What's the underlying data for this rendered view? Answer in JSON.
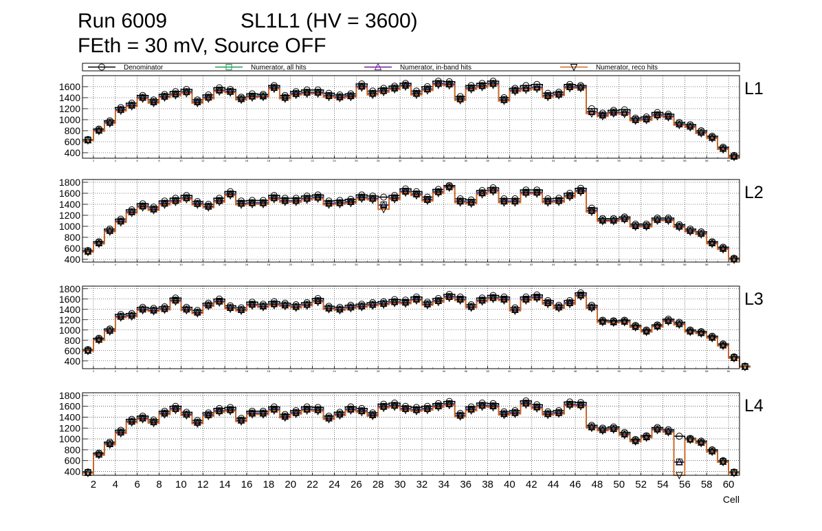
{
  "title": {
    "run": "Run 6009",
    "chamber": "SL1L1 (HV = 3600)",
    "subtitle": "FEth = 30 mV, Source OFF"
  },
  "colors": {
    "denominator": "#000000",
    "all_hits": "#1f9e58",
    "in_band": "#6a1b9a",
    "reco": "#d2691e"
  },
  "chart_data": {
    "type": "line",
    "xlabel": "Cell",
    "x_range": [
      1,
      61
    ],
    "x_tick_labels": [
      "2",
      "4",
      "6",
      "8",
      "10",
      "12",
      "14",
      "16",
      "18",
      "20",
      "22",
      "24",
      "26",
      "28",
      "30",
      "32",
      "34",
      "36",
      "38",
      "40",
      "42",
      "44",
      "46",
      "48",
      "50",
      "52",
      "54",
      "56",
      "58",
      "60"
    ],
    "legend": {
      "placement": "top",
      "entries": [
        "Denominator",
        "Numerator, all hits",
        "Numerator, in-band hits",
        "Numerator, reco hits"
      ]
    },
    "grid": true,
    "panels": [
      {
        "label": "L1",
        "ylim": [
          300,
          1800
        ],
        "y_ticks": [
          "400",
          "600",
          "800",
          "1000",
          "1200",
          "1400",
          "1600"
        ],
        "denominator": [
          640,
          830,
          980,
          1220,
          1300,
          1440,
          1360,
          1460,
          1510,
          1550,
          1360,
          1450,
          1580,
          1550,
          1410,
          1470,
          1460,
          1620,
          1440,
          1510,
          1540,
          1540,
          1480,
          1450,
          1470,
          1650,
          1520,
          1570,
          1610,
          1660,
          1520,
          1600,
          1700,
          1690,
          1420,
          1620,
          1660,
          1700,
          1400,
          1570,
          1620,
          1640,
          1480,
          1500,
          1640,
          1620,
          1200,
          1120,
          1170,
          1180,
          1030,
          1050,
          1130,
          1100,
          950,
          910,
          800,
          700,
          500,
          350
        ],
        "reco": [
          620,
          790,
          930,
          1160,
          1240,
          1380,
          1300,
          1400,
          1440,
          1480,
          1300,
          1380,
          1510,
          1490,
          1360,
          1400,
          1410,
          1560,
          1380,
          1450,
          1470,
          1470,
          1410,
          1390,
          1410,
          1580,
          1450,
          1500,
          1550,
          1600,
          1450,
          1530,
          1630,
          1620,
          1350,
          1550,
          1590,
          1630,
          1340,
          1510,
          1540,
          1560,
          1410,
          1440,
          1570,
          1570,
          1110,
          1060,
          1110,
          1100,
          980,
          990,
          1060,
          1040,
          900,
          860,
          750,
          660,
          460,
          320
        ]
      },
      {
        "label": "L2",
        "ylim": [
          350,
          1850
        ],
        "y_ticks": [
          "400",
          "600",
          "800",
          "1000",
          "1200",
          "1400",
          "1600",
          "1800"
        ],
        "denominator": [
          560,
          720,
          950,
          1130,
          1300,
          1410,
          1350,
          1460,
          1510,
          1560,
          1450,
          1400,
          1510,
          1630,
          1460,
          1470,
          1470,
          1560,
          1510,
          1510,
          1550,
          1570,
          1460,
          1470,
          1490,
          1570,
          1550,
          1530,
          1560,
          1680,
          1630,
          1530,
          1670,
          1740,
          1500,
          1480,
          1650,
          1700,
          1500,
          1500,
          1660,
          1660,
          1500,
          1510,
          1600,
          1690,
          1330,
          1140,
          1140,
          1170,
          1040,
          1040,
          1150,
          1150,
          1030,
          950,
          900,
          720,
          620,
          420
        ],
        "reco": [
          530,
          680,
          900,
          1070,
          1240,
          1340,
          1290,
          1390,
          1440,
          1490,
          1390,
          1340,
          1440,
          1560,
          1390,
          1400,
          1400,
          1490,
          1440,
          1440,
          1480,
          1500,
          1390,
          1400,
          1420,
          1500,
          1480,
          1310,
          1490,
          1610,
          1560,
          1460,
          1600,
          1700,
          1430,
          1410,
          1580,
          1630,
          1430,
          1430,
          1590,
          1590,
          1430,
          1440,
          1530,
          1620,
          1260,
          1090,
          1090,
          1120,
          990,
          990,
          1100,
          1100,
          980,
          900,
          850,
          680,
          580,
          390
        ]
      },
      {
        "label": "L3",
        "ylim": [
          250,
          1850
        ],
        "y_ticks": [
          "400",
          "600",
          "800",
          "1000",
          "1200",
          "1400",
          "1600",
          "1800"
        ],
        "denominator": [
          620,
          840,
          1020,
          1300,
          1320,
          1440,
          1420,
          1450,
          1620,
          1440,
          1380,
          1520,
          1600,
          1470,
          1430,
          1540,
          1500,
          1550,
          1520,
          1490,
          1530,
          1610,
          1460,
          1440,
          1480,
          1500,
          1530,
          1550,
          1590,
          1580,
          1640,
          1540,
          1610,
          1690,
          1640,
          1490,
          1620,
          1670,
          1640,
          1430,
          1640,
          1680,
          1570,
          1480,
          1570,
          1720,
          1480,
          1190,
          1180,
          1190,
          1090,
          1000,
          1100,
          1210,
          1150,
          1000,
          970,
          880,
          730,
          480,
          300
        ],
        "reco": [
          590,
          800,
          970,
          1240,
          1260,
          1380,
          1360,
          1390,
          1550,
          1380,
          1320,
          1460,
          1530,
          1410,
          1370,
          1470,
          1440,
          1480,
          1460,
          1430,
          1470,
          1540,
          1400,
          1380,
          1420,
          1440,
          1470,
          1490,
          1520,
          1510,
          1570,
          1480,
          1540,
          1620,
          1570,
          1430,
          1550,
          1600,
          1570,
          1370,
          1570,
          1610,
          1500,
          1420,
          1500,
          1650,
          1420,
          1150,
          1140,
          1150,
          1050,
          960,
          1060,
          1160,
          1100,
          960,
          930,
          840,
          690,
          450,
          280
        ]
      },
      {
        "label": "L4",
        "ylim": [
          330,
          1850
        ],
        "y_ticks": [
          "400",
          "600",
          "800",
          "1000",
          "1200",
          "1400",
          "1600",
          "1800"
        ],
        "denominator": [
          390,
          740,
          940,
          1160,
          1360,
          1420,
          1350,
          1510,
          1600,
          1490,
          1340,
          1480,
          1560,
          1580,
          1380,
          1510,
          1510,
          1590,
          1450,
          1520,
          1590,
          1580,
          1420,
          1490,
          1590,
          1560,
          1480,
          1640,
          1660,
          1600,
          1580,
          1600,
          1650,
          1690,
          1470,
          1590,
          1660,
          1650,
          1500,
          1520,
          1700,
          1630,
          1500,
          1520,
          1680,
          1670,
          1250,
          1200,
          1220,
          1120,
          990,
          1060,
          1210,
          1170,
          1050,
          1010,
          960,
          800,
          600,
          390
        ],
        "reco": [
          370,
          700,
          890,
          1100,
          1300,
          1360,
          1290,
          1450,
          1530,
          1430,
          1280,
          1420,
          1490,
          1510,
          1320,
          1450,
          1450,
          1520,
          1390,
          1460,
          1520,
          1510,
          1360,
          1430,
          1520,
          1490,
          1420,
          1570,
          1590,
          1530,
          1510,
          1530,
          1580,
          1620,
          1410,
          1520,
          1590,
          1580,
          1440,
          1460,
          1630,
          1560,
          1440,
          1460,
          1610,
          1600,
          1200,
          1150,
          1170,
          1070,
          950,
          1020,
          1160,
          1120,
          330,
          980,
          920,
          760,
          570,
          370
        ]
      }
    ]
  }
}
